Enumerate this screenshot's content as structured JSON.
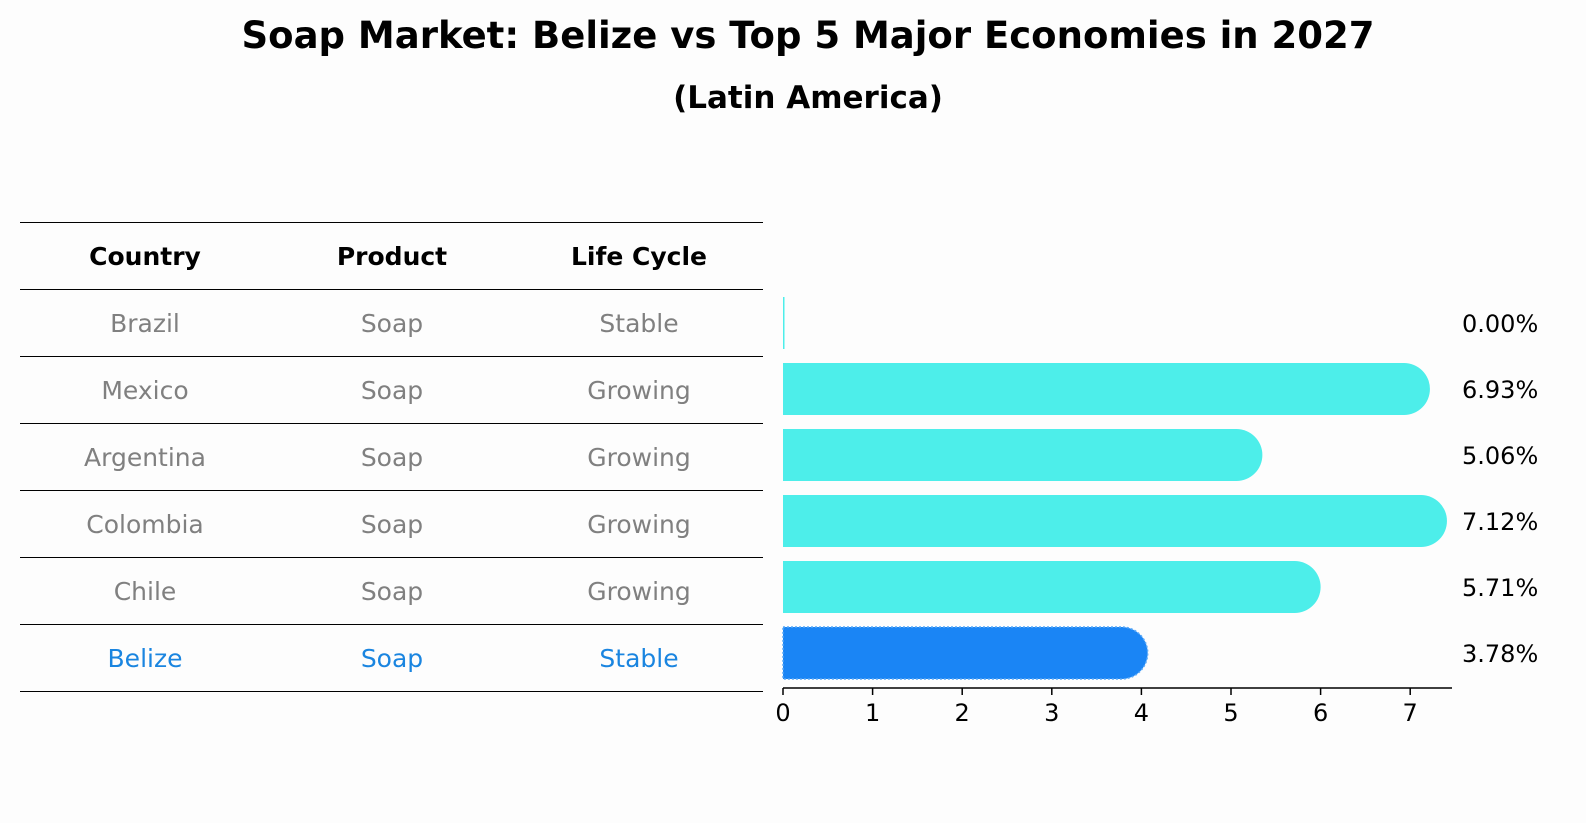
{
  "title": "Soap Market: Belize vs Top 5 Major Economies in 2027",
  "subtitle": "(Latin America)",
  "table": {
    "headers": [
      "Country",
      "Product",
      "Life Cycle"
    ],
    "rows": [
      {
        "country": "Brazil",
        "product": "Soap",
        "life_cycle": "Stable"
      },
      {
        "country": "Mexico",
        "product": "Soap",
        "life_cycle": "Growing"
      },
      {
        "country": "Argentina",
        "product": "Soap",
        "life_cycle": "Growing"
      },
      {
        "country": "Colombia",
        "product": "Soap",
        "life_cycle": "Growing"
      },
      {
        "country": "Chile",
        "product": "Soap",
        "life_cycle": "Growing"
      },
      {
        "country": "Belize",
        "product": "Soap",
        "life_cycle": "Stable"
      }
    ]
  },
  "chart_data": {
    "type": "bar",
    "orientation": "horizontal",
    "categories": [
      "Brazil",
      "Mexico",
      "Argentina",
      "Colombia",
      "Chile",
      "Belize"
    ],
    "values": [
      0.0,
      6.93,
      5.06,
      7.12,
      5.71,
      3.78
    ],
    "value_labels": [
      "0.00%",
      "6.93%",
      "5.06%",
      "7.12%",
      "5.71%",
      "3.78%"
    ],
    "xticks": [
      "0",
      "1",
      "2",
      "3",
      "4",
      "5",
      "6",
      "7"
    ],
    "xlim": [
      0,
      7.5
    ],
    "highlight_category": "Belize",
    "colors": {
      "default": "#4deeea",
      "highlight": "#1a85f5"
    },
    "grid": false
  }
}
